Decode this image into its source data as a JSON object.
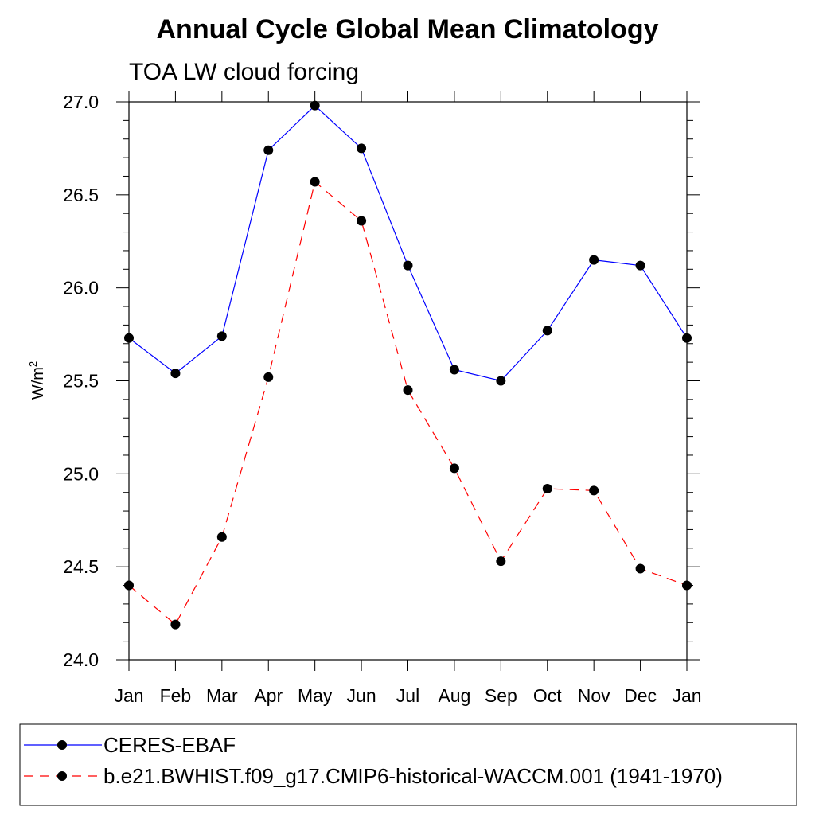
{
  "chart_data": {
    "type": "line",
    "title": "Annual Cycle Global Mean Climatology",
    "subtitle": "TOA LW cloud forcing",
    "xlabel": "",
    "ylabel": "W/m",
    "ylabel_superscript": "2",
    "categories": [
      "Jan",
      "Feb",
      "Mar",
      "Apr",
      "May",
      "Jun",
      "Jul",
      "Aug",
      "Sep",
      "Oct",
      "Nov",
      "Dec",
      "Jan"
    ],
    "ylim": [
      24.0,
      27.0
    ],
    "yticks": [
      "24.0",
      "24.5",
      "25.0",
      "25.5",
      "26.0",
      "26.5",
      "27.0"
    ],
    "grid": false,
    "legend_position": "bottom",
    "series": [
      {
        "name": "CERES-EBAF",
        "color": "#0000ff",
        "dash": "solid",
        "values": [
          25.73,
          25.54,
          25.74,
          26.74,
          26.98,
          26.75,
          26.12,
          25.56,
          25.5,
          25.77,
          26.15,
          26.12,
          25.73
        ]
      },
      {
        "name": "b.e21.BWHIST.f09_g17.CMIP6-historical-WACCM.001 (1941-1970)",
        "color": "#ff0000",
        "dash": "dashed",
        "values": [
          24.4,
          24.19,
          24.66,
          25.52,
          26.57,
          26.36,
          25.45,
          25.03,
          24.53,
          24.92,
          24.91,
          24.49,
          24.4
        ]
      }
    ]
  }
}
